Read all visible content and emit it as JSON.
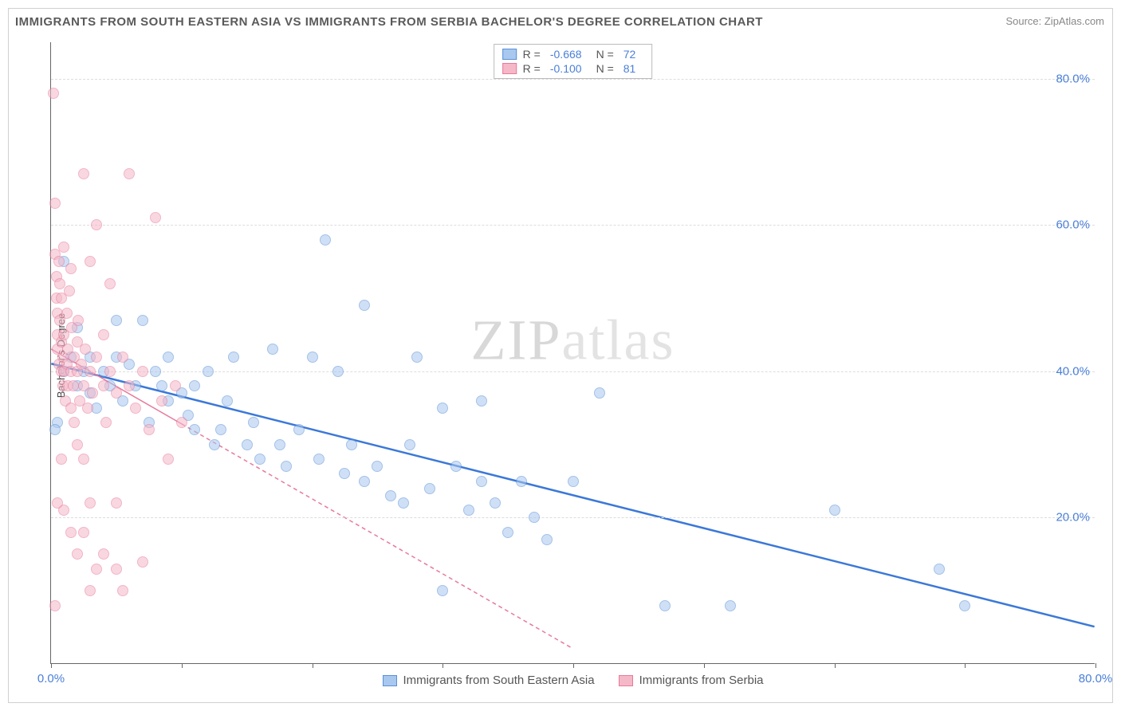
{
  "title": "IMMIGRANTS FROM SOUTH EASTERN ASIA VS IMMIGRANTS FROM SERBIA BACHELOR'S DEGREE CORRELATION CHART",
  "source": "Source: ZipAtlas.com",
  "watermark": "ZIPatlas",
  "chart": {
    "type": "scatter",
    "background_color": "#ffffff",
    "grid_color": "#dddddd",
    "axis_color": "#666666",
    "tick_label_color": "#4a7fd8",
    "tick_fontsize": 15,
    "title_fontsize": 15,
    "title_color": "#5a5a5a",
    "xlim": [
      0,
      80
    ],
    "ylim": [
      0,
      85
    ],
    "y_gridlines": [
      20,
      40,
      60,
      80
    ],
    "y_tick_labels": [
      "20.0%",
      "40.0%",
      "60.0%",
      "80.0%"
    ],
    "x_ticks": [
      0,
      10,
      20,
      30,
      40,
      50,
      60,
      70,
      80
    ],
    "x_tick_labels": {
      "0": "0.0%",
      "80": "80.0%"
    },
    "y_axis_label": "Bachelor's Degree",
    "point_radius": 7,
    "point_stroke_width": 1.2,
    "series": [
      {
        "name": "Immigrants from South Eastern Asia",
        "fill_color": "#a8c8f0",
        "stroke_color": "#5b8fd6",
        "fill_opacity": 0.55,
        "R": "-0.668",
        "N": "72",
        "trend": {
          "x1": 0,
          "y1": 41,
          "x2": 80,
          "y2": 5,
          "color": "#3b78d8",
          "width": 2.5,
          "dash": "none"
        },
        "points": [
          [
            0.5,
            33
          ],
          [
            1,
            40
          ],
          [
            1,
            55
          ],
          [
            1.5,
            42
          ],
          [
            2,
            38
          ],
          [
            2,
            46
          ],
          [
            2.5,
            40
          ],
          [
            3,
            37
          ],
          [
            3,
            42
          ],
          [
            3.5,
            35
          ],
          [
            4,
            40
          ],
          [
            4.5,
            38
          ],
          [
            5,
            42
          ],
          [
            5,
            47
          ],
          [
            5.5,
            36
          ],
          [
            6,
            41
          ],
          [
            6.5,
            38
          ],
          [
            7,
            47
          ],
          [
            7.5,
            33
          ],
          [
            8,
            40
          ],
          [
            8.5,
            38
          ],
          [
            9,
            36
          ],
          [
            9,
            42
          ],
          [
            10,
            37
          ],
          [
            10.5,
            34
          ],
          [
            11,
            32
          ],
          [
            11,
            38
          ],
          [
            12,
            40
          ],
          [
            12.5,
            30
          ],
          [
            13,
            32
          ],
          [
            13.5,
            36
          ],
          [
            14,
            42
          ],
          [
            15,
            30
          ],
          [
            15.5,
            33
          ],
          [
            16,
            28
          ],
          [
            17,
            43
          ],
          [
            17.5,
            30
          ],
          [
            18,
            27
          ],
          [
            19,
            32
          ],
          [
            20,
            42
          ],
          [
            20.5,
            28
          ],
          [
            21,
            58
          ],
          [
            22,
            40
          ],
          [
            22.5,
            26
          ],
          [
            23,
            30
          ],
          [
            24,
            25
          ],
          [
            24,
            49
          ],
          [
            25,
            27
          ],
          [
            26,
            23
          ],
          [
            27,
            22
          ],
          [
            27.5,
            30
          ],
          [
            28,
            42
          ],
          [
            29,
            24
          ],
          [
            30,
            10
          ],
          [
            30,
            35
          ],
          [
            31,
            27
          ],
          [
            32,
            21
          ],
          [
            33,
            25
          ],
          [
            33,
            36
          ],
          [
            34,
            22
          ],
          [
            35,
            18
          ],
          [
            36,
            25
          ],
          [
            37,
            20
          ],
          [
            38,
            17
          ],
          [
            40,
            25
          ],
          [
            42,
            37
          ],
          [
            47,
            8
          ],
          [
            52,
            8
          ],
          [
            60,
            21
          ],
          [
            68,
            13
          ],
          [
            70,
            8
          ],
          [
            0.3,
            32
          ]
        ]
      },
      {
        "name": "Immigrants from Serbia",
        "fill_color": "#f5b8c8",
        "stroke_color": "#e77a9a",
        "fill_opacity": 0.55,
        "R": "-0.100",
        "N": "81",
        "trend": {
          "x1": 0,
          "y1": 43,
          "x2": 40,
          "y2": 2,
          "solid_until_x": 10,
          "color": "#e77a9a",
          "width": 1.5,
          "dash": "5,4"
        },
        "points": [
          [
            0.2,
            78
          ],
          [
            0.3,
            63
          ],
          [
            0.3,
            56
          ],
          [
            0.4,
            53
          ],
          [
            0.4,
            50
          ],
          [
            0.5,
            48
          ],
          [
            0.5,
            45
          ],
          [
            0.5,
            43
          ],
          [
            0.6,
            55
          ],
          [
            0.6,
            41
          ],
          [
            0.7,
            52
          ],
          [
            0.7,
            47
          ],
          [
            0.8,
            40
          ],
          [
            0.8,
            44
          ],
          [
            0.8,
            50
          ],
          [
            0.9,
            38
          ],
          [
            0.9,
            42
          ],
          [
            1,
            45
          ],
          [
            1,
            40
          ],
          [
            1,
            57
          ],
          [
            1.1,
            36
          ],
          [
            1.2,
            48
          ],
          [
            1.2,
            41
          ],
          [
            1.3,
            38
          ],
          [
            1.3,
            43
          ],
          [
            1.4,
            51
          ],
          [
            1.5,
            40
          ],
          [
            1.5,
            35
          ],
          [
            1.5,
            54
          ],
          [
            1.6,
            46
          ],
          [
            1.7,
            38
          ],
          [
            1.8,
            42
          ],
          [
            1.8,
            33
          ],
          [
            2,
            40
          ],
          [
            2,
            44
          ],
          [
            2,
            30
          ],
          [
            2.1,
            47
          ],
          [
            2.2,
            36
          ],
          [
            2.3,
            41
          ],
          [
            2.5,
            38
          ],
          [
            2.5,
            67
          ],
          [
            2.5,
            18
          ],
          [
            2.6,
            43
          ],
          [
            2.8,
            35
          ],
          [
            3,
            40
          ],
          [
            3,
            22
          ],
          [
            3,
            55
          ],
          [
            3.2,
            37
          ],
          [
            3.5,
            42
          ],
          [
            3.5,
            13
          ],
          [
            3.5,
            60
          ],
          [
            4,
            38
          ],
          [
            4,
            45
          ],
          [
            4,
            15
          ],
          [
            4.2,
            33
          ],
          [
            4.5,
            40
          ],
          [
            4.5,
            52
          ],
          [
            5,
            37
          ],
          [
            5,
            22
          ],
          [
            5,
            13
          ],
          [
            5.5,
            42
          ],
          [
            5.5,
            10
          ],
          [
            6,
            38
          ],
          [
            6,
            67
          ],
          [
            6.5,
            35
          ],
          [
            7,
            40
          ],
          [
            7,
            14
          ],
          [
            7.5,
            32
          ],
          [
            8,
            61
          ],
          [
            8.5,
            36
          ],
          [
            9,
            28
          ],
          [
            9.5,
            38
          ],
          [
            10,
            33
          ],
          [
            1,
            21
          ],
          [
            1.5,
            18
          ],
          [
            2,
            15
          ],
          [
            2.5,
            28
          ],
          [
            3,
            10
          ],
          [
            0.3,
            8
          ],
          [
            0.5,
            22
          ],
          [
            0.8,
            28
          ]
        ]
      }
    ],
    "legend_top": {
      "border_color": "#bbbbbb",
      "rows": [
        {
          "swatch_fill": "#a8c8f0",
          "swatch_stroke": "#5b8fd6",
          "r_label": "R =",
          "r_val": "-0.668",
          "n_label": "N =",
          "n_val": "72"
        },
        {
          "swatch_fill": "#f5b8c8",
          "swatch_stroke": "#e77a9a",
          "r_label": "R =",
          "r_val": "-0.100",
          "n_label": "N =",
          "n_val": "81"
        }
      ]
    },
    "legend_bottom": [
      {
        "swatch_fill": "#a8c8f0",
        "swatch_stroke": "#5b8fd6",
        "label": "Immigrants from South Eastern Asia"
      },
      {
        "swatch_fill": "#f5b8c8",
        "swatch_stroke": "#e77a9a",
        "label": "Immigrants from Serbia"
      }
    ]
  }
}
